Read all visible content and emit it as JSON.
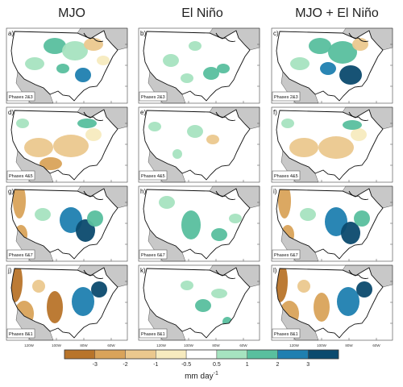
{
  "titles": {
    "col_mjo": "MJO",
    "col_enso": "El Niño",
    "col_both": "MJO + El Niño"
  },
  "panels": [
    {
      "letter": "a)",
      "phase": "Phases 2&3"
    },
    {
      "letter": "b)",
      "phase": "Phases 2&3"
    },
    {
      "letter": "c)",
      "phase": "Phases 2&3"
    },
    {
      "letter": "d)",
      "phase": "Phases 4&5"
    },
    {
      "letter": "e)",
      "phase": "Phases 4&5"
    },
    {
      "letter": "f)",
      "phase": "Phases 4&5"
    },
    {
      "letter": "g)",
      "phase": "Phases 6&7"
    },
    {
      "letter": "h)",
      "phase": "Phases 6&7"
    },
    {
      "letter": "i)",
      "phase": "Phases 6&7"
    },
    {
      "letter": "j)",
      "phase": "Phases 8&1"
    },
    {
      "letter": "k)",
      "phase": "Phases 8&1"
    },
    {
      "letter": "l)",
      "phase": "Phases 8&1"
    }
  ],
  "lon_ticks": [
    "120W",
    "100W",
    "80W",
    "60W"
  ],
  "colorbar": {
    "labels": [
      "-3",
      "-2",
      "-1",
      "-0.5",
      "0.5",
      "1",
      "2",
      "3"
    ],
    "unit": "mm day",
    "unit_exp": "-1",
    "colors": [
      "#b8742a",
      "#d9a35a",
      "#ebc88e",
      "#f7ebbf",
      "#ffffff",
      "#a6e3c0",
      "#59bf9e",
      "#1f7fb0",
      "#0b4a6e"
    ]
  }
}
